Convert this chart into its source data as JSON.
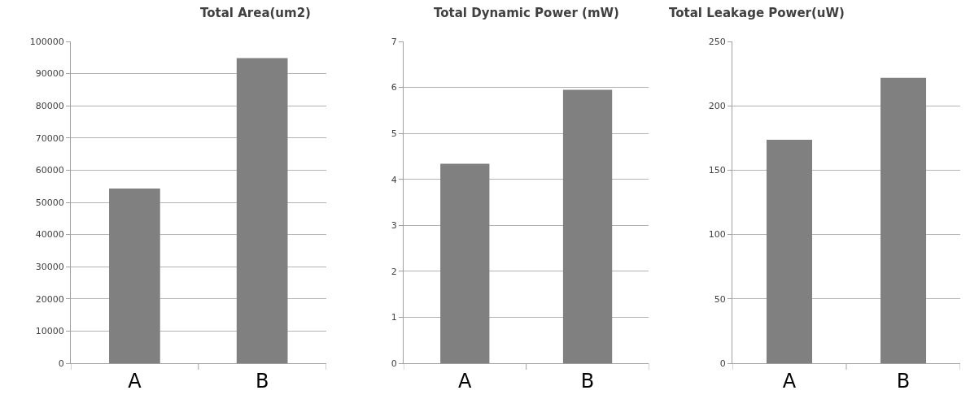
{
  "chart_data": [
    {
      "type": "bar",
      "title": "Total Area(um2)",
      "categories": [
        "A",
        "B"
      ],
      "values": [
        54300,
        94800
      ],
      "color": "#808080",
      "ylim": [
        0,
        100000
      ],
      "yticks": [
        0,
        10000,
        20000,
        30000,
        40000,
        50000,
        60000,
        70000,
        80000,
        90000,
        100000
      ],
      "grid": "y",
      "legend": false
    },
    {
      "type": "bar",
      "title": "Total Dynamic Power (mW)",
      "categories": [
        "A",
        "B"
      ],
      "values": [
        4.34,
        5.95
      ],
      "color": "#808080",
      "ylim": [
        0,
        7
      ],
      "yticks": [
        0,
        1,
        2,
        3,
        4,
        5,
        6,
        7
      ],
      "grid": "y",
      "legend": false
    },
    {
      "type": "bar",
      "title": "Total Leakage Power(uW)",
      "categories": [
        "A",
        "B"
      ],
      "values": [
        173.6,
        221.7
      ],
      "color": "#808080",
      "ylim": [
        0,
        250
      ],
      "yticks": [
        0,
        50,
        100,
        150,
        200,
        250
      ],
      "grid": "y",
      "legend": false
    }
  ]
}
